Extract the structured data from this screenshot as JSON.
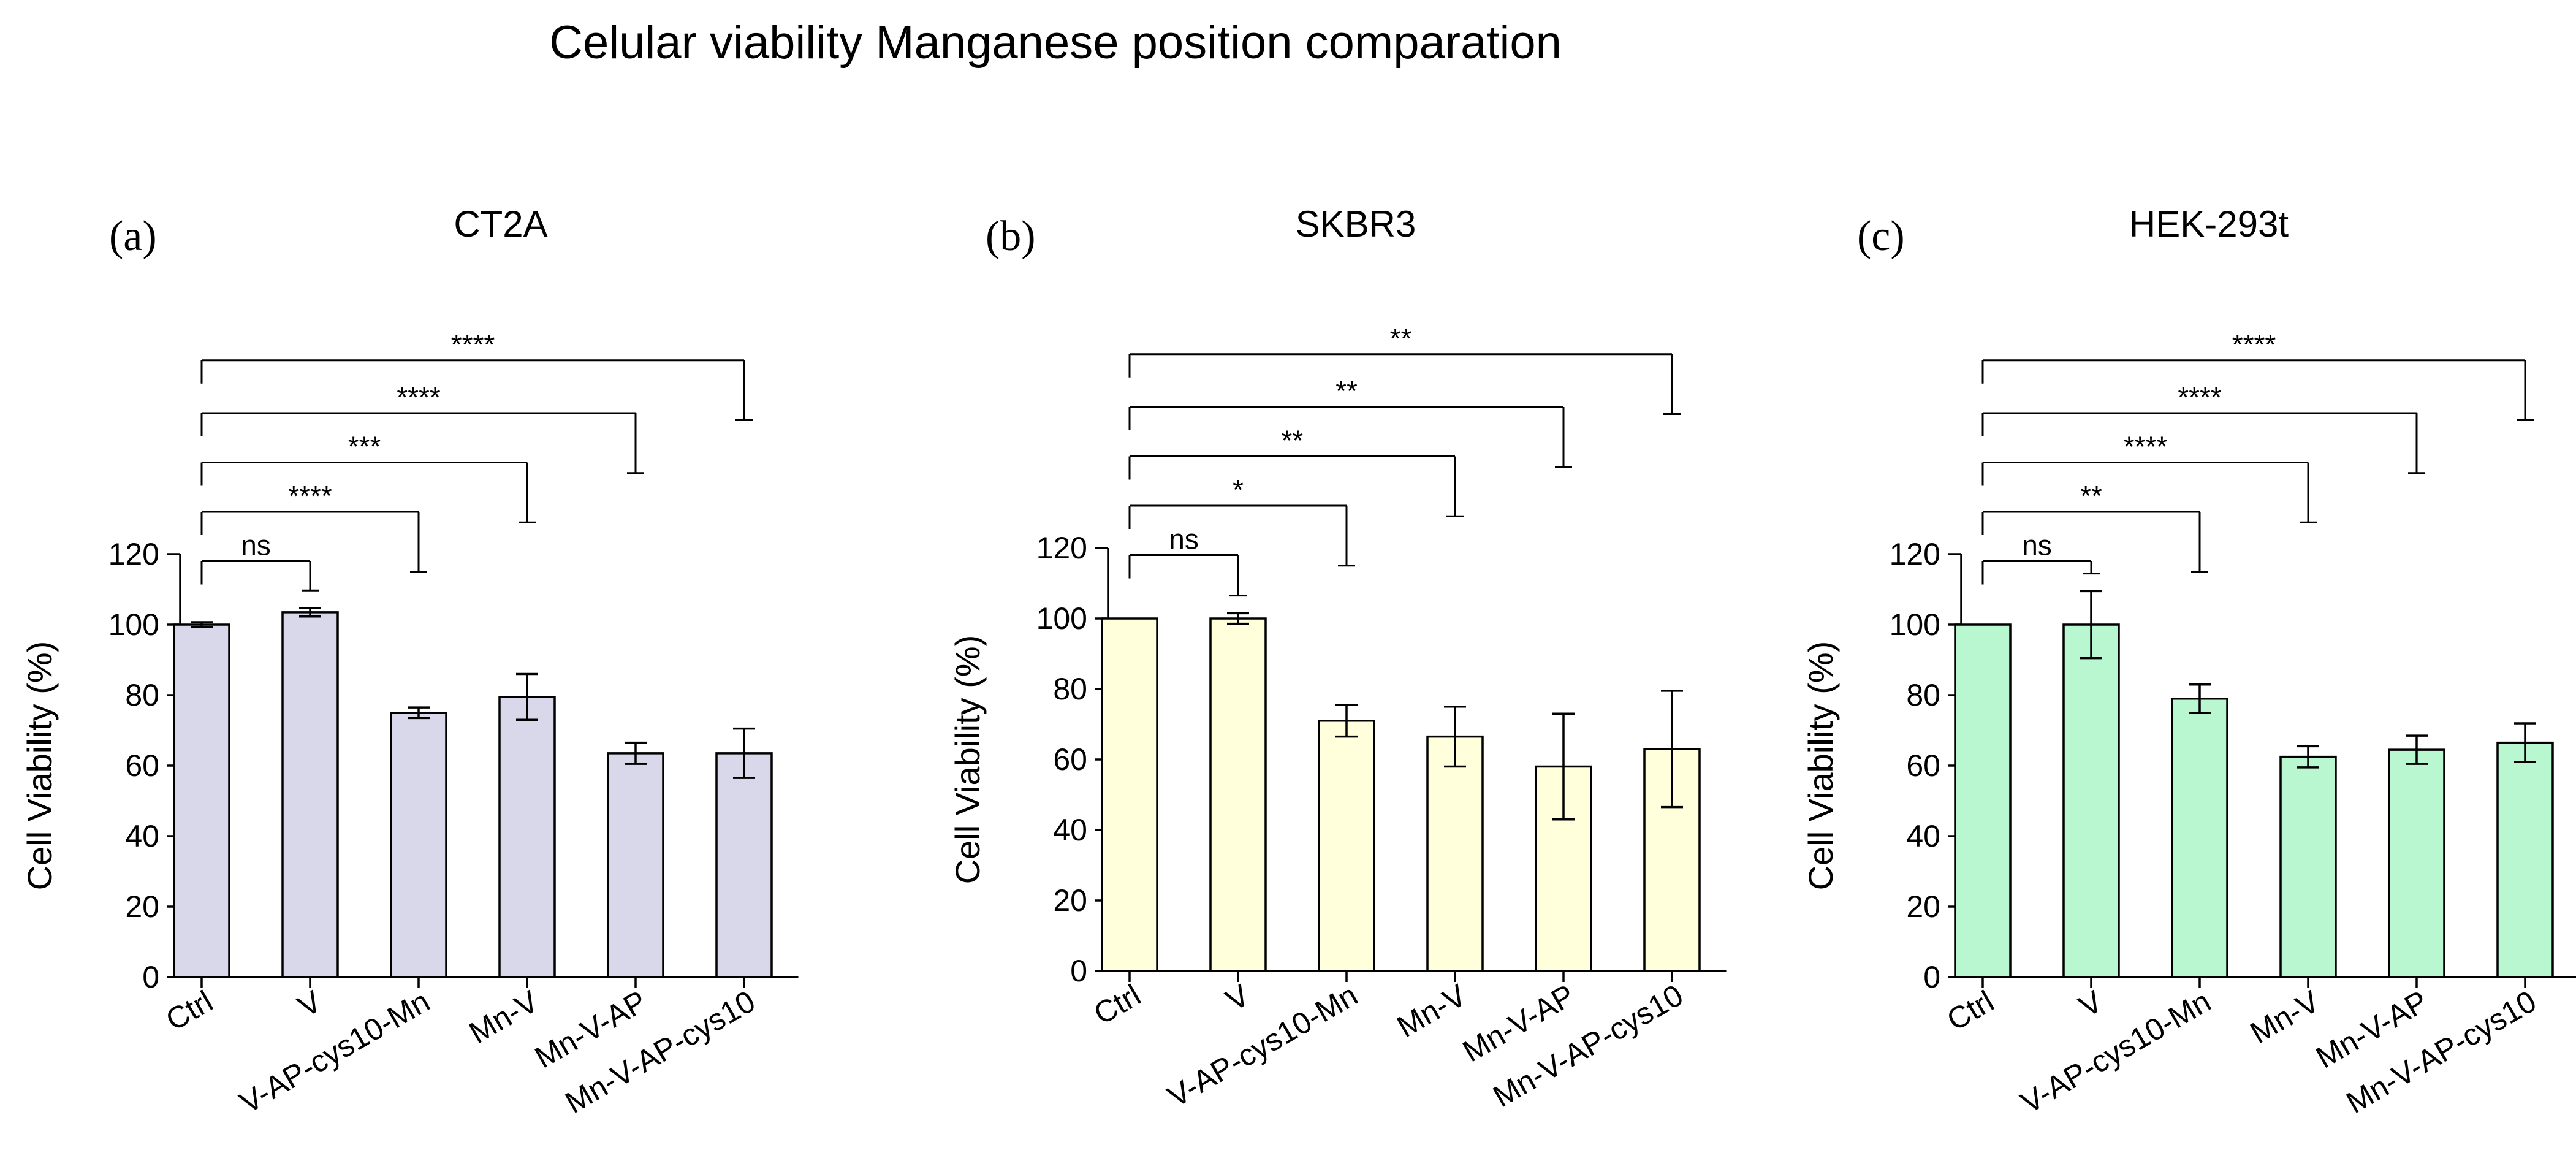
{
  "title": "Celular viability Manganese position comparation",
  "chart_data": [
    {
      "type": "bar",
      "panel_label": "(a)",
      "title": "CT2A",
      "ylabel": "Cell Viability (%)",
      "xlabel": "",
      "ylim": [
        0,
        120
      ],
      "yticks": [
        "0",
        "20",
        "40",
        "60",
        "80",
        "100",
        "120"
      ],
      "categories": [
        "Ctrl",
        "V",
        "V-AP-cys10-Mn",
        "Mn-V",
        "Mn-V-AP",
        "Mn-V-AP-cys10"
      ],
      "values": [
        100,
        103.5,
        75,
        79.5,
        63.5,
        63.5
      ],
      "errors": [
        0.7,
        1.2,
        1.5,
        6.5,
        3,
        7
      ],
      "bar_color": "#d8d8ea",
      "comparisons": [
        {
          "target": "V",
          "label": "ns",
          "level": 118
        },
        {
          "target": "V-AP-cys10-Mn",
          "label": "****",
          "level": 132
        },
        {
          "target": "Mn-V",
          "label": "***",
          "level": 146
        },
        {
          "target": "Mn-V-AP",
          "label": "****",
          "level": 160
        },
        {
          "target": "Mn-V-AP-cys10",
          "label": "****",
          "level": 175
        }
      ]
    },
    {
      "type": "bar",
      "panel_label": "(b)",
      "title": "SKBR3",
      "ylabel": "Cell Viability (%)",
      "xlabel": "",
      "ylim": [
        0,
        120
      ],
      "yticks": [
        "0",
        "20",
        "40",
        "60",
        "80",
        "100",
        "120"
      ],
      "categories": [
        "Ctrl",
        "V",
        "V-AP-cys10-Mn",
        "Mn-V",
        "Mn-V-AP",
        "Mn-V-AP-cys10"
      ],
      "values": [
        100,
        100,
        71,
        66.5,
        58,
        63
      ],
      "errors": [
        0,
        1.5,
        4.5,
        8.5,
        15,
        16.5
      ],
      "bar_color": "#ffffdc",
      "comparisons": [
        {
          "target": "V",
          "label": "ns",
          "level": 118
        },
        {
          "target": "V-AP-cys10-Mn",
          "label": "*",
          "level": 132
        },
        {
          "target": "Mn-V",
          "label": "**",
          "level": 146
        },
        {
          "target": "Mn-V-AP",
          "label": "**",
          "level": 160
        },
        {
          "target": "Mn-V-AP-cys10",
          "label": "**",
          "level": 175
        }
      ]
    },
    {
      "type": "bar",
      "panel_label": "(c)",
      "title": "HEK-293t",
      "ylabel": "Cell Viability (%)",
      "xlabel": "",
      "ylim": [
        0,
        120
      ],
      "yticks": [
        "0",
        "20",
        "40",
        "60",
        "80",
        "100",
        "120"
      ],
      "categories": [
        "Ctrl",
        "V",
        "V-AP-cys10-Mn",
        "Mn-V",
        "Mn-V-AP",
        "Mn-V-AP-cys10"
      ],
      "values": [
        100,
        100,
        79,
        62.5,
        64.5,
        66.5
      ],
      "errors": [
        0,
        9.5,
        4,
        3,
        4,
        5.5
      ],
      "bar_color": "#b8f7d0",
      "comparisons": [
        {
          "target": "V",
          "label": "ns",
          "level": 118
        },
        {
          "target": "V-AP-cys10-Mn",
          "label": "**",
          "level": 132
        },
        {
          "target": "Mn-V",
          "label": "****",
          "level": 146
        },
        {
          "target": "Mn-V-AP",
          "label": "****",
          "level": 160
        },
        {
          "target": "Mn-V-AP-cys10",
          "label": "****",
          "level": 175
        }
      ]
    }
  ]
}
